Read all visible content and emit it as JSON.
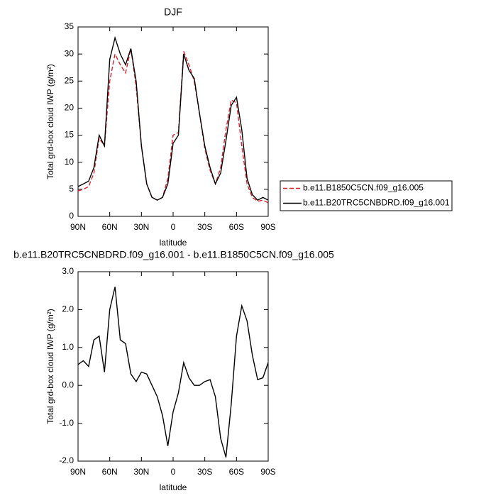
{
  "chart_data": [
    {
      "type": "line",
      "title": "DJF",
      "xlabel": "latitude",
      "ylabel": "Total grd-box cloud IWP (g/m²)",
      "x": [
        90,
        85,
        80,
        75,
        70,
        65,
        60,
        55,
        50,
        45,
        40,
        35,
        30,
        25,
        20,
        15,
        10,
        5,
        0,
        -5,
        -10,
        -15,
        -20,
        -25,
        -30,
        -35,
        -40,
        -45,
        -50,
        -55,
        -60,
        -65,
        -70,
        -75,
        -80,
        -85,
        -90
      ],
      "xlim": [
        90,
        -90
      ],
      "xticks": [
        {
          "value": 90,
          "label": "90N"
        },
        {
          "value": 60,
          "label": "60N"
        },
        {
          "value": 30,
          "label": "30N"
        },
        0,
        {
          "value": -30,
          "label": "30S"
        },
        {
          "value": -60,
          "label": "60S"
        },
        {
          "value": -90,
          "label": "90S"
        }
      ],
      "ylim": [
        0,
        35
      ],
      "yticks": [
        0,
        5,
        10,
        15,
        20,
        25,
        30,
        35
      ],
      "legend": "right",
      "series": [
        {
          "name": "b.e11.B1850C5CN.f09_g16.005",
          "color": "#e0202a",
          "dash": true,
          "values": [
            4.7,
            5,
            5.5,
            8,
            14.5,
            13,
            25,
            30,
            28,
            26.5,
            31,
            24,
            13,
            6,
            3.5,
            3,
            3.5,
            7,
            15,
            15.5,
            30.5,
            28,
            25,
            19,
            12.5,
            8.5,
            6,
            9,
            16,
            21.5,
            21,
            13,
            6,
            3.5,
            2.8,
            3,
            2.5
          ]
        },
        {
          "name": "b.e11.B20TRC5CNBDRD.f09_g16.001",
          "color": "#000000",
          "dash": false,
          "values": [
            5.5,
            6,
            6.5,
            9,
            15,
            13,
            29,
            33,
            30,
            28,
            31,
            25,
            13,
            6,
            3.5,
            3,
            3.5,
            6,
            13.5,
            15,
            30,
            27,
            25.5,
            19,
            13,
            9,
            6,
            8,
            14,
            20.5,
            22,
            16,
            7,
            4,
            3,
            3.5,
            3
          ]
        }
      ]
    },
    {
      "type": "line",
      "title": "b.e11.B20TRC5CNBDRD.f09_g16.001 - b.e11.B1850C5CN.f09_g16.005",
      "xlabel": "latitude",
      "ylabel": "Total grd-box cloud IWP (g/m²)",
      "x": [
        90,
        85,
        80,
        75,
        70,
        65,
        60,
        55,
        50,
        45,
        40,
        35,
        30,
        25,
        20,
        15,
        10,
        5,
        0,
        -5,
        -10,
        -15,
        -20,
        -25,
        -30,
        -35,
        -40,
        -45,
        -50,
        -55,
        -60,
        -65,
        -70,
        -75,
        -80,
        -85,
        -90
      ],
      "xlim": [
        90,
        -90
      ],
      "xticks": [
        {
          "value": 90,
          "label": "90N"
        },
        {
          "value": 60,
          "label": "60N"
        },
        {
          "value": 30,
          "label": "30N"
        },
        0,
        {
          "value": -30,
          "label": "30S"
        },
        {
          "value": -60,
          "label": "60S"
        },
        {
          "value": -90,
          "label": "90S"
        }
      ],
      "ylim": [
        -2,
        3
      ],
      "yticks": [
        {
          "value": -2,
          "label": "-2.0"
        },
        {
          "value": -1,
          "label": "-1.0"
        },
        {
          "value": 0,
          "label": "0.0"
        },
        {
          "value": 1,
          "label": "1.0"
        },
        {
          "value": 2,
          "label": "2.0"
        },
        {
          "value": 3,
          "label": "3.0"
        }
      ],
      "series": [
        {
          "color": "#000000",
          "dash": false,
          "values": [
            0.55,
            0.65,
            0.5,
            1.2,
            1.3,
            0.35,
            2.0,
            2.6,
            1.2,
            1.1,
            0.3,
            0.1,
            0.35,
            0.3,
            0.0,
            -0.3,
            -0.8,
            -1.6,
            -0.7,
            -0.2,
            0.6,
            0.2,
            0.0,
            0.0,
            0.1,
            0.15,
            -0.3,
            -1.4,
            -1.9,
            -0.5,
            1.3,
            2.1,
            1.7,
            0.8,
            0.15,
            0.2,
            0.6
          ]
        }
      ]
    }
  ]
}
